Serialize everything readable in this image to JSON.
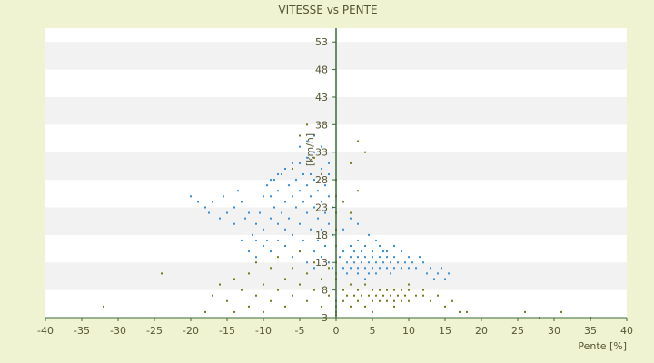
{
  "chart_data": {
    "type": "scatter",
    "title": "VITESSE vs PENTE",
    "xlabel": "Pente [%]",
    "ylabel": "[km/h]",
    "xlim": [
      -40,
      40
    ],
    "ylim": [
      3,
      55.5
    ],
    "x_ticks": [
      -40,
      -35,
      -30,
      -25,
      -20,
      -15,
      -10,
      -5,
      0,
      5,
      10,
      15,
      20,
      25,
      30,
      35,
      40
    ],
    "y_ticks": [
      3,
      8,
      13,
      18,
      23,
      28,
      33,
      38,
      43,
      48,
      53
    ],
    "grid": "horizontal-bands",
    "colors": {
      "series_a": "#3a8fd9",
      "series_b": "#7a7a1a",
      "band_light": "#ffffff",
      "band_dark": "#f2f2f2",
      "axis": "#3a6a3a",
      "text": "#555533"
    },
    "series": [
      {
        "color_key": "series_a",
        "points": [
          [
            -20,
            25
          ],
          [
            -19,
            24
          ],
          [
            -18,
            23
          ],
          [
            -17.5,
            22
          ],
          [
            -17,
            24
          ],
          [
            -16,
            21
          ],
          [
            -15.5,
            25
          ],
          [
            -15,
            22
          ],
          [
            -14,
            20
          ],
          [
            -14,
            23
          ],
          [
            -13.5,
            26
          ],
          [
            -13,
            24
          ],
          [
            -12.5,
            21
          ],
          [
            -12,
            22
          ],
          [
            -11.5,
            18
          ],
          [
            -11,
            20
          ],
          [
            -11,
            17
          ],
          [
            -10.5,
            22
          ],
          [
            -10,
            25
          ],
          [
            -10,
            19
          ],
          [
            -9.5,
            27
          ],
          [
            -9.5,
            17
          ],
          [
            -9,
            21
          ],
          [
            -9,
            25
          ],
          [
            -8.5,
            28
          ],
          [
            -8.5,
            23
          ],
          [
            -8,
            20
          ],
          [
            -8,
            26
          ],
          [
            -7.5,
            22
          ],
          [
            -7.5,
            29
          ],
          [
            -7,
            24
          ],
          [
            -7,
            19
          ],
          [
            -6.5,
            27
          ],
          [
            -6.5,
            21
          ],
          [
            -6,
            25
          ],
          [
            -6,
            30
          ],
          [
            -6,
            18
          ],
          [
            -5.5,
            23
          ],
          [
            -5.5,
            28
          ],
          [
            -5,
            26
          ],
          [
            -5,
            20
          ],
          [
            -5,
            31
          ],
          [
            -4.5,
            24
          ],
          [
            -4.5,
            29
          ],
          [
            -4.5,
            17
          ],
          [
            -4,
            27
          ],
          [
            -4,
            22
          ],
          [
            -4,
            32
          ],
          [
            -3.5,
            25
          ],
          [
            -3.5,
            19
          ],
          [
            -3.5,
            29
          ],
          [
            -3,
            23
          ],
          [
            -3,
            28
          ],
          [
            -3,
            15
          ],
          [
            -3,
            33
          ],
          [
            -2.5,
            26
          ],
          [
            -2.5,
            21
          ],
          [
            -2.5,
            17
          ],
          [
            -2,
            24
          ],
          [
            -2,
            30
          ],
          [
            -2,
            19
          ],
          [
            -2,
            14
          ],
          [
            -1.5,
            27
          ],
          [
            -1.5,
            22
          ],
          [
            -1.5,
            16
          ],
          [
            -1,
            25
          ],
          [
            -1,
            20
          ],
          [
            -1,
            13
          ],
          [
            -1,
            29
          ],
          [
            -0.5,
            23
          ],
          [
            -0.5,
            18
          ],
          [
            -0.5,
            12
          ],
          [
            -3,
            12
          ],
          [
            -4,
            13
          ],
          [
            -5,
            15
          ],
          [
            -6,
            14
          ],
          [
            -7,
            16
          ],
          [
            -8,
            17
          ],
          [
            -9,
            15
          ],
          [
            -10,
            16
          ],
          [
            -11,
            14
          ],
          [
            -12,
            15
          ],
          [
            -13,
            17
          ],
          [
            -6,
            31
          ],
          [
            -7,
            30
          ],
          [
            -8,
            29
          ],
          [
            -9,
            28
          ],
          [
            -4,
            35
          ],
          [
            -3,
            36
          ],
          [
            -2,
            34
          ],
          [
            -5,
            34
          ],
          [
            -1,
            31
          ],
          [
            0.5,
            14
          ],
          [
            1,
            12
          ],
          [
            1,
            15
          ],
          [
            1.5,
            13
          ],
          [
            1.5,
            11
          ],
          [
            2,
            14
          ],
          [
            2,
            12
          ],
          [
            2.5,
            13
          ],
          [
            2.5,
            15
          ],
          [
            3,
            12
          ],
          [
            3,
            14
          ],
          [
            3,
            11
          ],
          [
            3.5,
            13
          ],
          [
            3.5,
            15
          ],
          [
            4,
            12
          ],
          [
            4,
            14
          ],
          [
            4,
            10
          ],
          [
            4.5,
            13
          ],
          [
            4.5,
            11
          ],
          [
            5,
            12
          ],
          [
            5,
            14
          ],
          [
            5.5,
            13
          ],
          [
            5.5,
            11
          ],
          [
            6,
            12
          ],
          [
            6,
            14
          ],
          [
            6.5,
            13
          ],
          [
            6.5,
            15
          ],
          [
            7,
            12
          ],
          [
            7,
            14
          ],
          [
            7.5,
            13
          ],
          [
            7.5,
            11
          ],
          [
            8,
            12
          ],
          [
            8,
            14
          ],
          [
            8.5,
            13
          ],
          [
            9,
            12
          ],
          [
            9,
            15
          ],
          [
            9.5,
            13
          ],
          [
            10,
            12
          ],
          [
            10,
            14
          ],
          [
            10.5,
            13
          ],
          [
            11,
            12
          ],
          [
            11.5,
            14
          ],
          [
            12,
            13
          ],
          [
            12.5,
            11
          ],
          [
            13,
            12
          ],
          [
            13.5,
            10
          ],
          [
            14,
            11
          ],
          [
            14.5,
            12
          ],
          [
            15,
            10
          ],
          [
            15.5,
            11
          ],
          [
            2,
            16
          ],
          [
            3,
            17
          ],
          [
            4,
            16
          ],
          [
            5,
            15
          ],
          [
            6,
            16
          ],
          [
            7,
            15
          ],
          [
            8,
            16
          ],
          [
            1,
            19
          ],
          [
            2,
            21
          ],
          [
            3,
            20
          ],
          [
            4.5,
            18
          ],
          [
            5.5,
            17
          ]
        ]
      },
      {
        "color_key": "series_b",
        "points": [
          [
            -32,
            5
          ],
          [
            -24,
            11
          ],
          [
            -17,
            7
          ],
          [
            -18,
            4
          ],
          [
            -16,
            9
          ],
          [
            -15,
            6
          ],
          [
            -14,
            10
          ],
          [
            -14,
            4
          ],
          [
            -13,
            8
          ],
          [
            -12,
            11
          ],
          [
            -12,
            5
          ],
          [
            -11,
            7
          ],
          [
            -11,
            13
          ],
          [
            -10,
            9
          ],
          [
            -10,
            4
          ],
          [
            -9,
            12
          ],
          [
            -9,
            6
          ],
          [
            -8,
            8
          ],
          [
            -8,
            14
          ],
          [
            -7,
            10
          ],
          [
            -7,
            5
          ],
          [
            -6,
            12
          ],
          [
            -6,
            7
          ],
          [
            -5,
            9
          ],
          [
            -5,
            15
          ],
          [
            -4,
            11
          ],
          [
            -4,
            6
          ],
          [
            -3,
            13
          ],
          [
            -3,
            8
          ],
          [
            -2,
            10
          ],
          [
            -2,
            5
          ],
          [
            -1,
            12
          ],
          [
            -1,
            7
          ],
          [
            -5,
            36
          ],
          [
            -4,
            38
          ],
          [
            -6,
            30
          ],
          [
            -3,
            32
          ],
          [
            -2,
            29
          ],
          [
            0,
            13
          ],
          [
            0,
            16
          ],
          [
            0,
            19
          ],
          [
            0,
            22
          ],
          [
            0,
            25
          ],
          [
            0,
            28
          ],
          [
            0,
            6
          ],
          [
            0,
            5
          ],
          [
            0,
            4
          ],
          [
            0,
            3.5
          ],
          [
            0,
            10
          ],
          [
            0,
            11
          ],
          [
            1,
            8
          ],
          [
            1,
            6
          ],
          [
            1.5,
            7
          ],
          [
            2,
            9
          ],
          [
            2,
            5
          ],
          [
            2.5,
            7
          ],
          [
            3,
            8
          ],
          [
            3,
            6
          ],
          [
            3.5,
            7
          ],
          [
            4,
            9
          ],
          [
            4,
            5
          ],
          [
            4.5,
            7
          ],
          [
            5,
            8
          ],
          [
            5,
            6
          ],
          [
            5.5,
            7
          ],
          [
            6,
            8
          ],
          [
            6,
            6
          ],
          [
            6.5,
            7
          ],
          [
            7,
            8
          ],
          [
            7,
            6
          ],
          [
            7.5,
            7
          ],
          [
            8,
            8
          ],
          [
            8,
            6
          ],
          [
            8.5,
            7
          ],
          [
            9,
            8
          ],
          [
            9,
            6
          ],
          [
            9.5,
            7
          ],
          [
            10,
            8
          ],
          [
            10,
            6
          ],
          [
            11,
            7
          ],
          [
            12,
            8
          ],
          [
            13,
            6
          ],
          [
            14,
            7
          ],
          [
            15,
            5
          ],
          [
            16,
            6
          ],
          [
            17,
            4
          ],
          [
            18,
            4
          ],
          [
            3,
            35
          ],
          [
            4,
            33
          ],
          [
            2,
            31
          ],
          [
            1,
            24
          ],
          [
            2,
            22
          ],
          [
            3,
            26
          ],
          [
            10,
            9
          ],
          [
            12,
            7
          ],
          [
            5,
            4
          ],
          [
            8,
            5
          ],
          [
            26,
            4
          ],
          [
            28,
            3
          ],
          [
            31,
            4
          ],
          [
            35,
            3
          ]
        ]
      }
    ]
  }
}
